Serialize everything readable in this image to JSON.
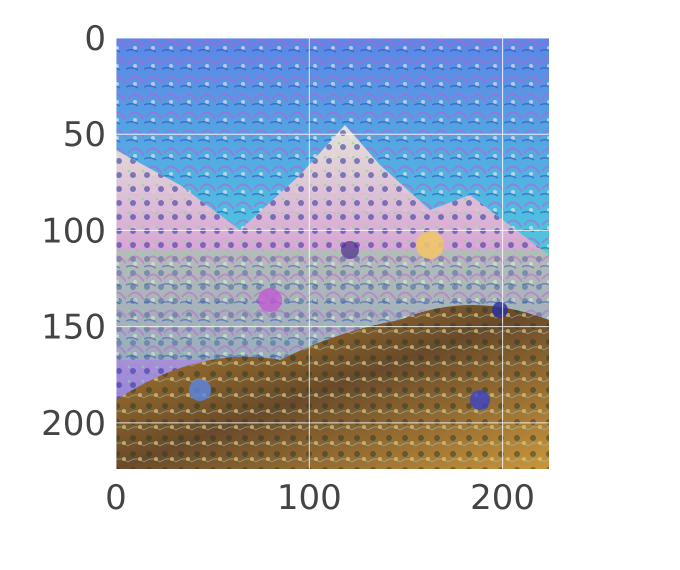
{
  "image": {
    "description_colors": {
      "sky_blue": "#5b86e6",
      "cyan": "#47d6e5",
      "green": "#7fe08a",
      "magenta": "#c05ad1",
      "purple": "#6b3fb0",
      "orange": "#d4852f",
      "gold": "#c7a64a",
      "brown": "#6a4a2a",
      "white": "#f3f1e4"
    }
  },
  "axes": {
    "x_ticks": [
      "0",
      "100",
      "200"
    ],
    "y_ticks": [
      "0",
      "50",
      "100",
      "150",
      "200"
    ],
    "x_tick_values": [
      0,
      100,
      200
    ],
    "y_tick_values": [
      0,
      50,
      100,
      150,
      200
    ],
    "xlim": [
      0,
      224
    ],
    "ylim": [
      224,
      0
    ],
    "grid": true
  }
}
